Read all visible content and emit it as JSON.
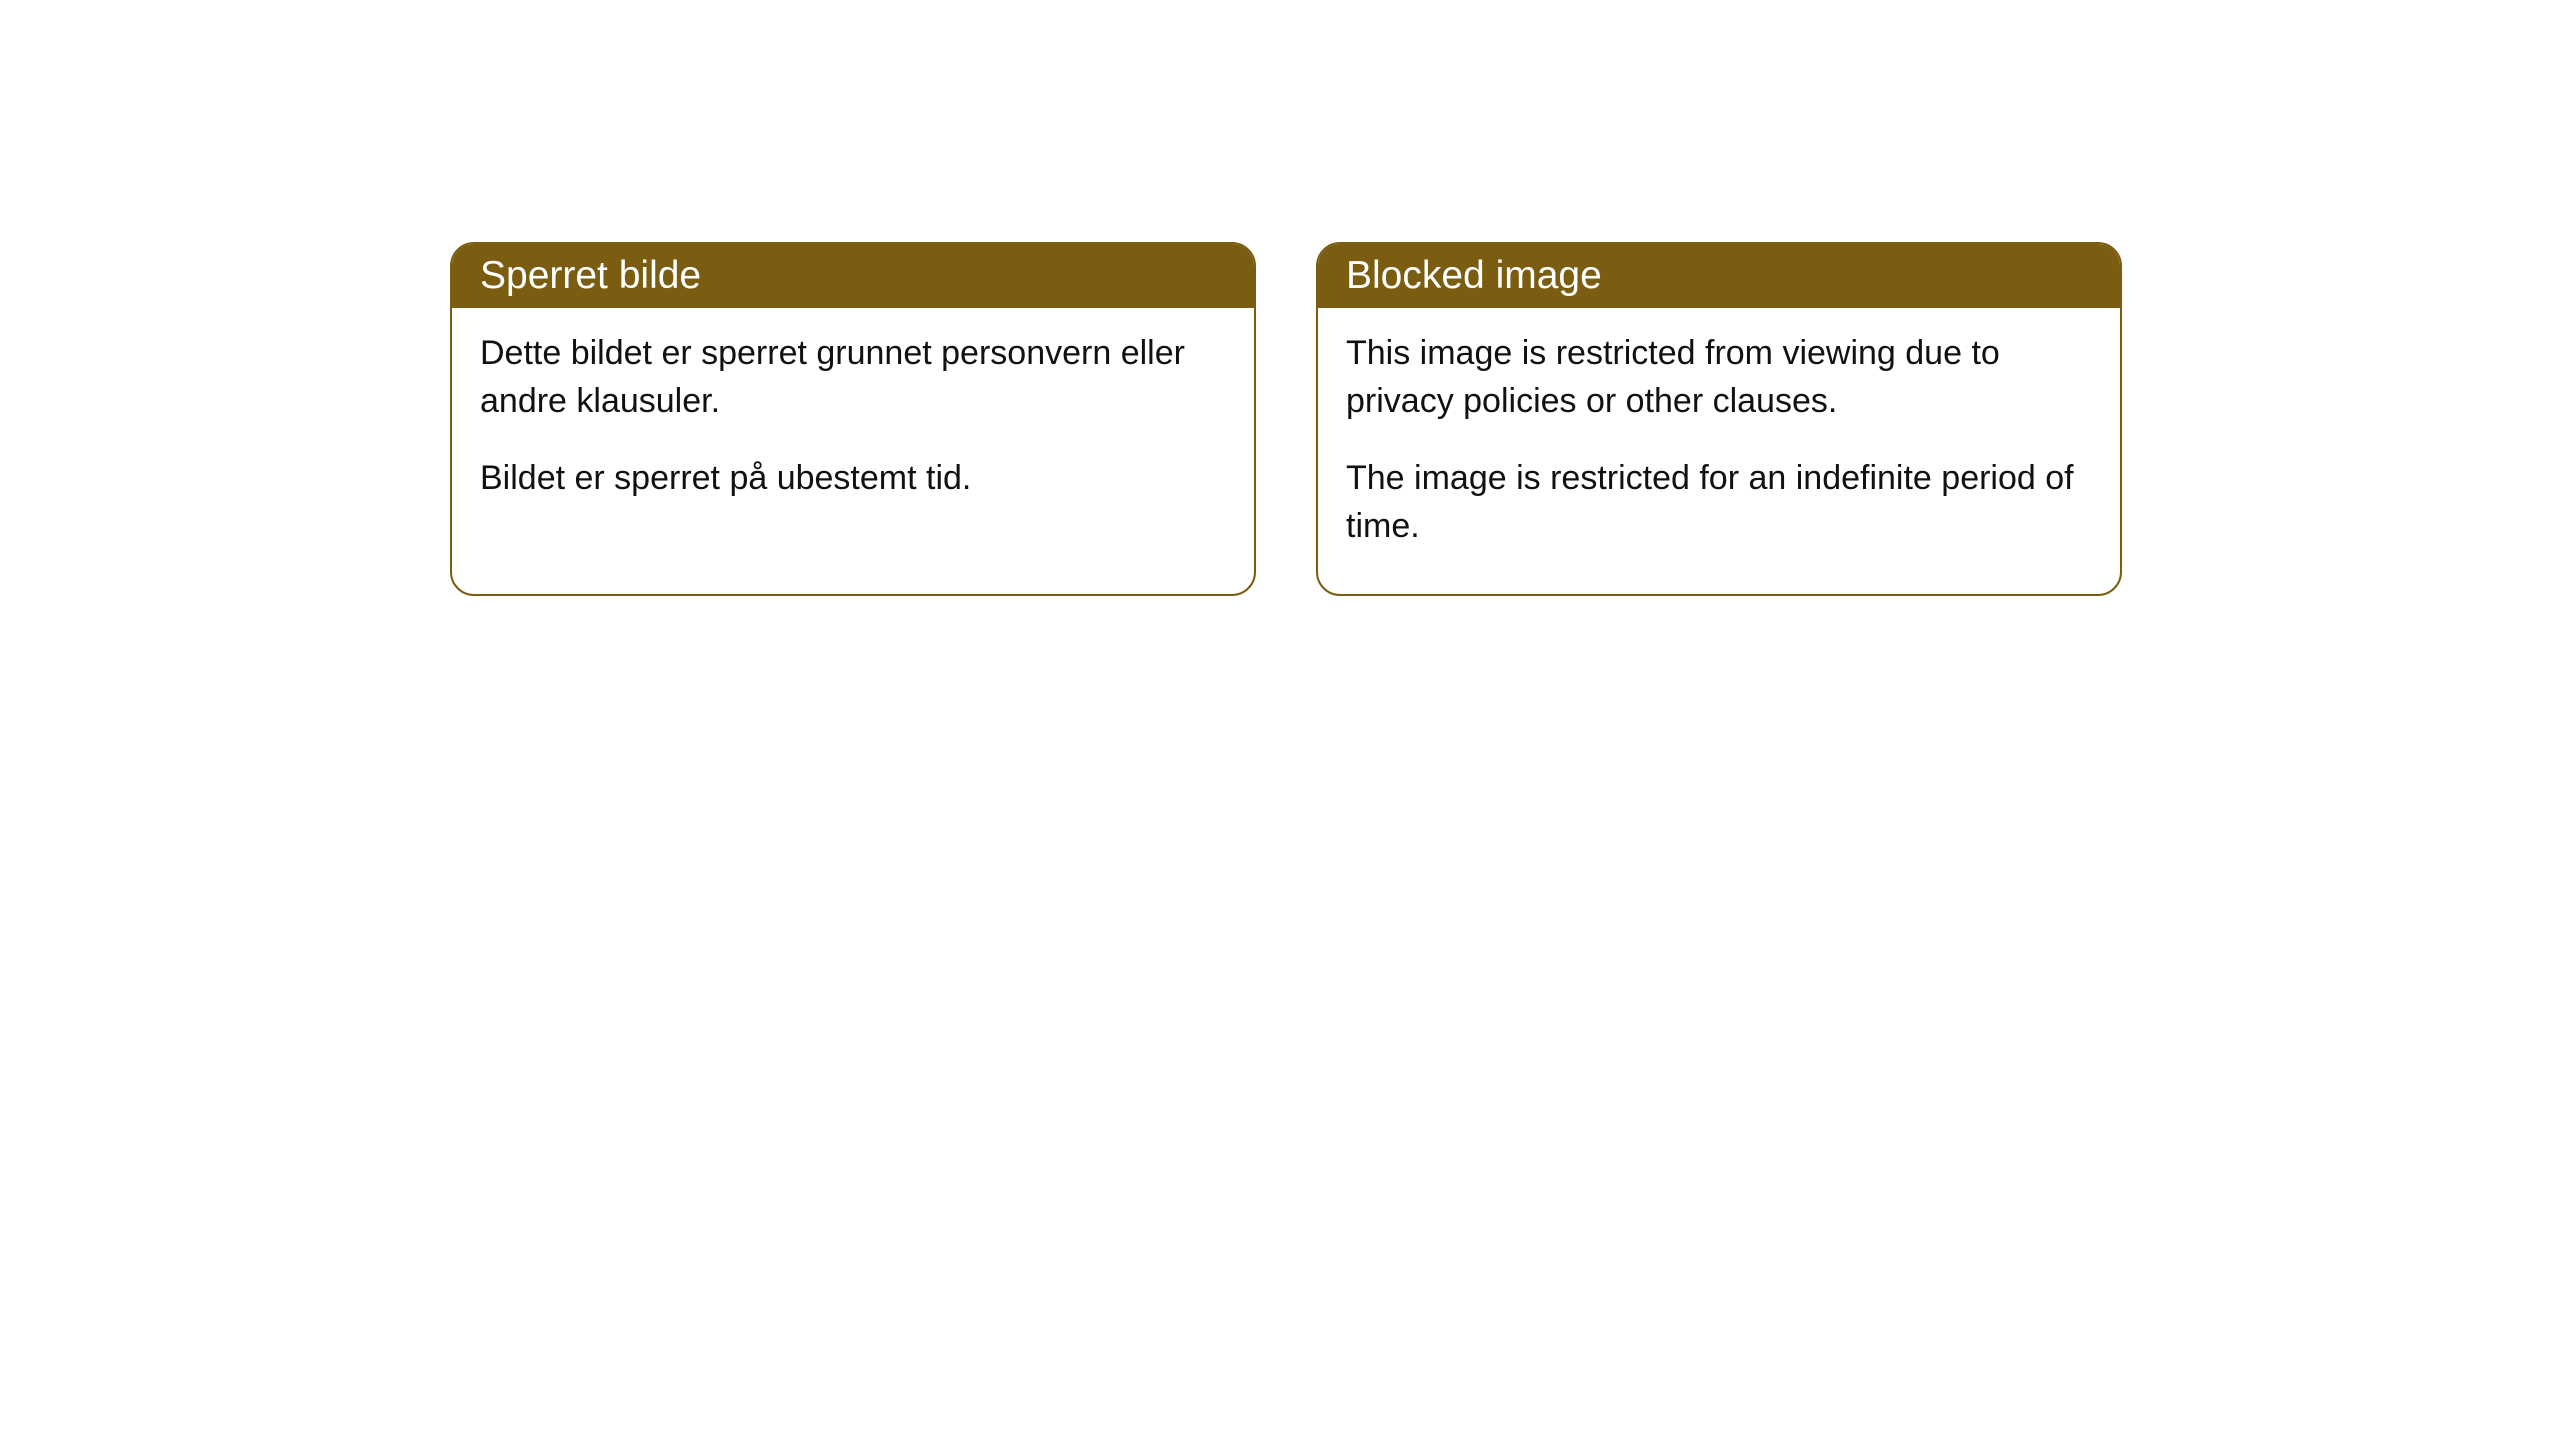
{
  "cards": [
    {
      "title": "Sperret bilde",
      "paragraph1": "Dette bildet er sperret grunnet personvern eller andre klausuler.",
      "paragraph2": "Bildet er sperret på ubestemt tid."
    },
    {
      "title": "Blocked image",
      "paragraph1": "This image is restricted from viewing due to privacy policies or other clauses.",
      "paragraph2": "The image is restricted for an indefinite period of time."
    }
  ],
  "style": {
    "header_background": "#7a5d10",
    "header_text_color": "#ffffff",
    "border_color": "#7a5d10",
    "body_text_color": "#111111",
    "page_background": "#ffffff",
    "border_radius": 24,
    "title_fontsize": 39,
    "body_fontsize": 34
  }
}
